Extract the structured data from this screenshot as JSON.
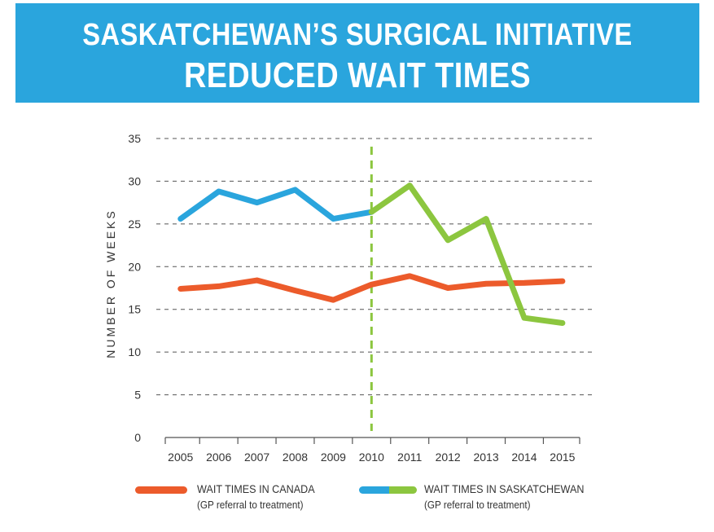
{
  "header": {
    "title_line1": "SASKATCHEWAN’S SURGICAL INITIATIVE",
    "title_line2": "REDUCED WAIT TIMES"
  },
  "colors": {
    "banner": "#2aa5dd",
    "canada": "#ec5b2b",
    "sask_before": "#2aa5dd",
    "sask_after": "#8cc63f",
    "grid": "#555555",
    "initiative_marker": "#8cc63f"
  },
  "chart_data": {
    "type": "line",
    "ylabel": "NUMBER OF WEEKS",
    "xlabel": "",
    "ylim": [
      0,
      35
    ],
    "yticks": [
      0,
      5,
      10,
      15,
      20,
      25,
      30,
      35
    ],
    "xlim": [
      2004.6,
      2015.45
    ],
    "categories": [
      "2005",
      "2006",
      "2007",
      "2008",
      "2009",
      "2010",
      "2011",
      "2012",
      "2013",
      "2014",
      "2015"
    ],
    "grid": "horizontal dashed",
    "initiative_marker_x": 2010,
    "series": [
      {
        "name": "WAIT TIMES IN CANADA",
        "note": "(GP referral to treatment)",
        "color": "#ec5b2b",
        "x": [
          2005,
          2006,
          2007,
          2008,
          2009,
          2010,
          2011,
          2012,
          2013,
          2014,
          2015
        ],
        "values": [
          17.4,
          17.7,
          18.4,
          17.2,
          16.1,
          17.9,
          18.9,
          17.5,
          18.0,
          18.1,
          18.3
        ]
      },
      {
        "name": "WAIT TIMES IN SASKATCHEWAN",
        "note": "(GP referral to treatment)",
        "color_before": "#2aa5dd",
        "color_after": "#8cc63f",
        "split_x": 2010,
        "x": [
          2005,
          2006,
          2007,
          2008,
          2009,
          2010,
          2011,
          2012,
          2013,
          2014,
          2015
        ],
        "values": [
          25.6,
          28.8,
          27.5,
          29.0,
          25.6,
          26.4,
          29.5,
          23.1,
          25.6,
          14.0,
          13.4
        ]
      }
    ],
    "legend_position": "bottom"
  }
}
